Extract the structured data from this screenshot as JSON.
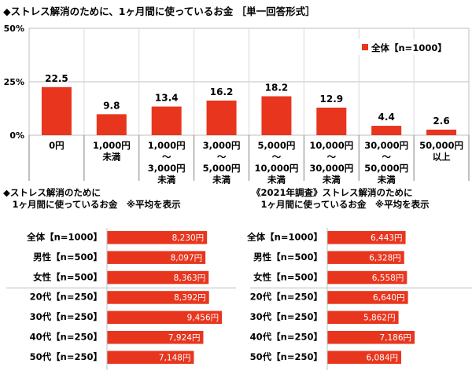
{
  "title": "◆ストレス解消のために、1ヶ月間に使っているお金 ［単一回答形式］",
  "chart_data": [
    {
      "type": "bar",
      "categories": [
        [
          "0円"
        ],
        [
          "1,000円",
          "未満"
        ],
        [
          "1,000円",
          "～",
          "3,000円",
          "未満"
        ],
        [
          "3,000円",
          "～",
          "5,000円",
          "未満"
        ],
        [
          "5,000円",
          "～",
          "10,000円",
          "未満"
        ],
        [
          "10,000円",
          "～",
          "30,000円",
          "未満"
        ],
        [
          "30,000円",
          "～",
          "50,000円",
          "未満"
        ],
        [
          "50,000円",
          "以上"
        ]
      ],
      "series": [
        {
          "name": "全体【n=1000】",
          "values": [
            22.5,
            9.8,
            13.4,
            16.2,
            18.2,
            12.9,
            4.4,
            2.6
          ]
        }
      ],
      "yticks": [
        "0%",
        "25%",
        "50%"
      ],
      "ylim": [
        0,
        50
      ],
      "grid": true,
      "legend": "top-right",
      "colors": {
        "bar": "#e8361e"
      }
    },
    {
      "type": "bar",
      "orientation": "horizontal",
      "title": "◆ストレス解消のために\n　1ヶ月間に使っているお金　※平均を表示",
      "categories": [
        "全体【n=1000】",
        "男性【n=500】",
        "女性【n=500】",
        "20代【n=250】",
        "30代【n=250】",
        "40代【n=250】",
        "50代【n=250】"
      ],
      "values": [
        8230,
        8097,
        8363,
        8392,
        9456,
        7924,
        7148
      ],
      "labels": [
        "8,230円",
        "8,097円",
        "8,363円",
        "8,392円",
        "9,456円",
        "7,924円",
        "7,148円"
      ],
      "xlim": [
        0,
        11000
      ],
      "colors": {
        "bar": "#e8361e"
      }
    },
    {
      "type": "bar",
      "orientation": "horizontal",
      "title": "《2021年調査》ストレス解消のために\n　1ヶ月間に使っているお金　※平均を表示",
      "categories": [
        "全体【n=1000】",
        "男性【n=500】",
        "女性【n=500】",
        "20代【n=250】",
        "30代【n=250】",
        "40代【n=250】",
        "50代【n=250】"
      ],
      "values": [
        6443,
        6328,
        6558,
        6640,
        5862,
        7186,
        6084
      ],
      "labels": [
        "6,443円",
        "6,328円",
        "6,558円",
        "6,640円",
        "5,862円",
        "7,186円",
        "6,084円"
      ],
      "xlim": [
        0,
        11000
      ],
      "colors": {
        "bar": "#e8361e"
      }
    }
  ]
}
